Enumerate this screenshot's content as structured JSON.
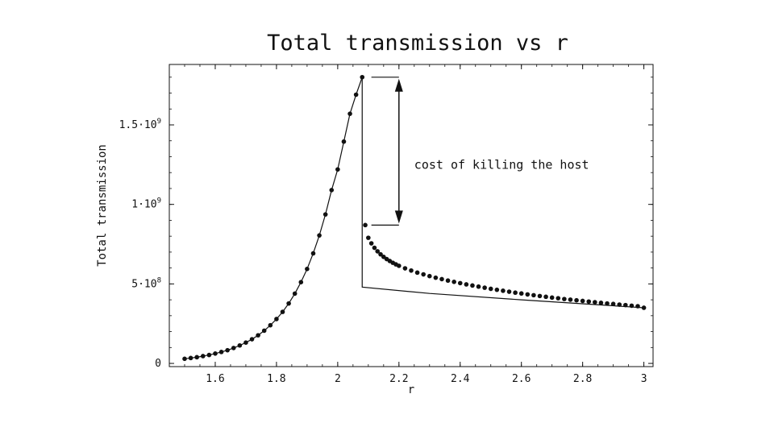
{
  "chart_data": {
    "type": "scatter",
    "title": "Total transmission vs r",
    "xlabel": "r",
    "ylabel": "Total transmission",
    "xlim": [
      1.45,
      3.03
    ],
    "ylim": [
      -20000000,
      1880000000
    ],
    "x_ticks": [
      1.6,
      1.8,
      2.0,
      2.2,
      2.4,
      2.6,
      2.8,
      3.0
    ],
    "x_tick_labels": [
      "1.6",
      "1.8",
      "2",
      "2.2",
      "2.4",
      "2.6",
      "2.8",
      "3"
    ],
    "y_ticks": [
      0,
      500000000,
      1000000000,
      1500000000
    ],
    "y_tick_labels": [
      {
        "mantissa": "0",
        "exponent": ""
      },
      {
        "mantissa": "5·10",
        "exponent": "8"
      },
      {
        "mantissa": "1·10",
        "exponent": "9"
      },
      {
        "mantissa": "1.5·10",
        "exponent": "9"
      }
    ],
    "grid": false,
    "series": [
      {
        "marker": "dot",
        "line": true,
        "color": "#111111",
        "x": [
          1.5,
          1.52,
          1.54,
          1.56,
          1.58,
          1.6,
          1.62,
          1.64,
          1.66,
          1.68,
          1.7,
          1.72,
          1.74,
          1.76,
          1.78,
          1.8,
          1.82,
          1.84,
          1.86,
          1.88,
          1.9,
          1.92,
          1.94,
          1.96,
          1.98,
          2.0,
          2.02,
          2.04,
          2.06,
          2.08
        ],
        "y": [
          29000000,
          34000000,
          39000000,
          46000000,
          53000000,
          62000000,
          72000000,
          83000000,
          97000000,
          113000000,
          131000000,
          152000000,
          177000000,
          206000000,
          240000000,
          279000000,
          324000000,
          377000000,
          439000000,
          511000000,
          594000000,
          692000000,
          805000000,
          937000000,
          1090000000,
          1220000000,
          1395000000,
          1570000000,
          1690000000,
          1800000000
        ]
      },
      {
        "marker": "dot",
        "line": false,
        "color": "#111111",
        "x": [
          2.09,
          2.1,
          2.11,
          2.12,
          2.13,
          2.14,
          2.15,
          2.16,
          2.17,
          2.18,
          2.19,
          2.2,
          2.22,
          2.24,
          2.26,
          2.28,
          2.3,
          2.32,
          2.34,
          2.36,
          2.38,
          2.4,
          2.42,
          2.44,
          2.46,
          2.48,
          2.5,
          2.52,
          2.54,
          2.56,
          2.58,
          2.6,
          2.62,
          2.64,
          2.66,
          2.68,
          2.7,
          2.72,
          2.74,
          2.76,
          2.78,
          2.8,
          2.82,
          2.84,
          2.86,
          2.88,
          2.9,
          2.92,
          2.94,
          2.96,
          2.98,
          3.0
        ],
        "y": [
          870000000,
          790000000,
          755000000,
          727000000,
          705000000,
          686000000,
          670000000,
          656000000,
          644000000,
          633000000,
          623000000,
          614000000,
          598000000,
          584000000,
          571000000,
          560000000,
          549000000,
          539000000,
          530000000,
          521000000,
          513000000,
          505000000,
          497000000,
          490000000,
          483000000,
          476000000,
          469000000,
          463000000,
          457000000,
          451000000,
          445000000,
          440000000,
          434000000,
          429000000,
          424000000,
          419000000,
          414000000,
          410000000,
          405000000,
          401000000,
          397000000,
          393000000,
          389000000,
          385000000,
          381000000,
          377000000,
          374000000,
          370000000,
          367000000,
          363000000,
          360000000,
          350000000
        ]
      }
    ],
    "reference_line": {
      "color": "#111111",
      "x": [
        2.08,
        2.08,
        2.3,
        2.6,
        3.0
      ],
      "y": [
        1800000000,
        480000000,
        440000000,
        400000000,
        350000000
      ]
    },
    "annotations": [
      {
        "text": "cost of killing the host",
        "type": "double-arrow",
        "x": 2.2,
        "y_top": 1800000000,
        "y_bottom": 870000000,
        "tick_x_start": 2.11,
        "tick_x_end": 2.2,
        "label_x": 2.25,
        "label_y": 1250000000
      }
    ]
  }
}
